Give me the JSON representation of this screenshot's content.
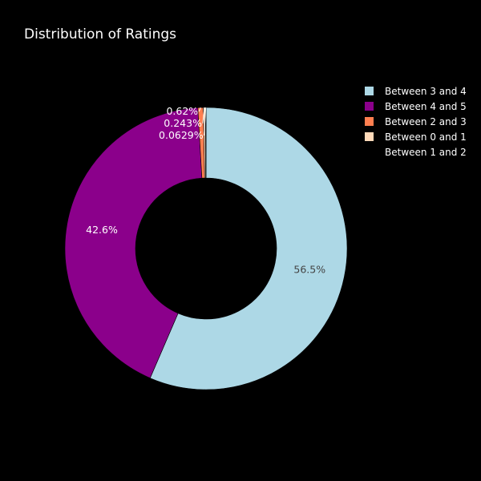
{
  "chart_data": {
    "type": "pie",
    "hole": true,
    "title": "Distribution of Ratings",
    "slices": [
      {
        "label": "Between 3 and 4",
        "value": 56.5,
        "text": "56.5%",
        "color": "#add8e6",
        "text_color": "#444444"
      },
      {
        "label": "Between 4 and 5",
        "value": 42.6,
        "text": "42.6%",
        "color": "#8b008b",
        "text_color": "#ffffff"
      },
      {
        "label": "Between 2 and 3",
        "value": 0.62,
        "text": "0.62%",
        "color": "#ff7f50",
        "text_color": "#ffffff"
      },
      {
        "label": "Between 0 and 1",
        "value": 0.243,
        "text": "0.243%",
        "color": "#ffdab9",
        "text_color": "#ffffff"
      },
      {
        "label": "Between 1 and 2",
        "value": 0.0629,
        "text": "0.0629%",
        "color": "#ffffff",
        "text_color": "#ffffff"
      }
    ],
    "legend_position": "top-right",
    "background": "#000000"
  }
}
